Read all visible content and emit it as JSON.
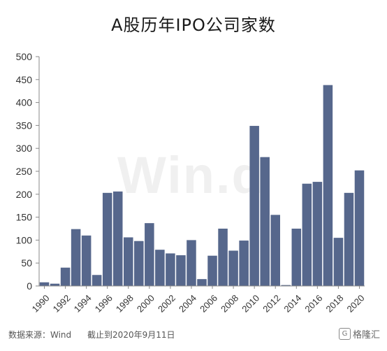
{
  "chart_data": {
    "type": "bar",
    "title": "A股历年IPO公司家数",
    "categories": [
      "1990",
      "1991",
      "1992",
      "1993",
      "1994",
      "1995",
      "1996",
      "1997",
      "1998",
      "1999",
      "2000",
      "2001",
      "2002",
      "2003",
      "2004",
      "2005",
      "2006",
      "2007",
      "2008",
      "2009",
      "2010",
      "2011",
      "2012",
      "2013",
      "2014",
      "2015",
      "2016",
      "2017",
      "2018",
      "2019",
      "2020"
    ],
    "values": [
      8,
      5,
      40,
      124,
      110,
      24,
      203,
      206,
      106,
      98,
      137,
      79,
      71,
      67,
      100,
      15,
      66,
      125,
      77,
      99,
      349,
      281,
      155,
      2,
      125,
      223,
      227,
      438,
      105,
      203,
      252
    ],
    "x_tick_labels": [
      "1990",
      "1992",
      "1994",
      "1996",
      "1998",
      "2000",
      "2002",
      "2004",
      "2006",
      "2008",
      "2010",
      "2012",
      "2014",
      "2016",
      "2018",
      "2020"
    ],
    "ylim": [
      0,
      500
    ],
    "y_ticks": [
      0,
      50,
      100,
      150,
      200,
      250,
      300,
      350,
      400,
      450,
      500
    ],
    "bar_color": "#56678c",
    "grid": false,
    "legend": "none"
  },
  "footer": {
    "source": "数据来源：Wind      截止到2020年9月11日"
  },
  "watermark": "Win.d",
  "logo": {
    "icon": "G",
    "text": "格隆汇"
  }
}
